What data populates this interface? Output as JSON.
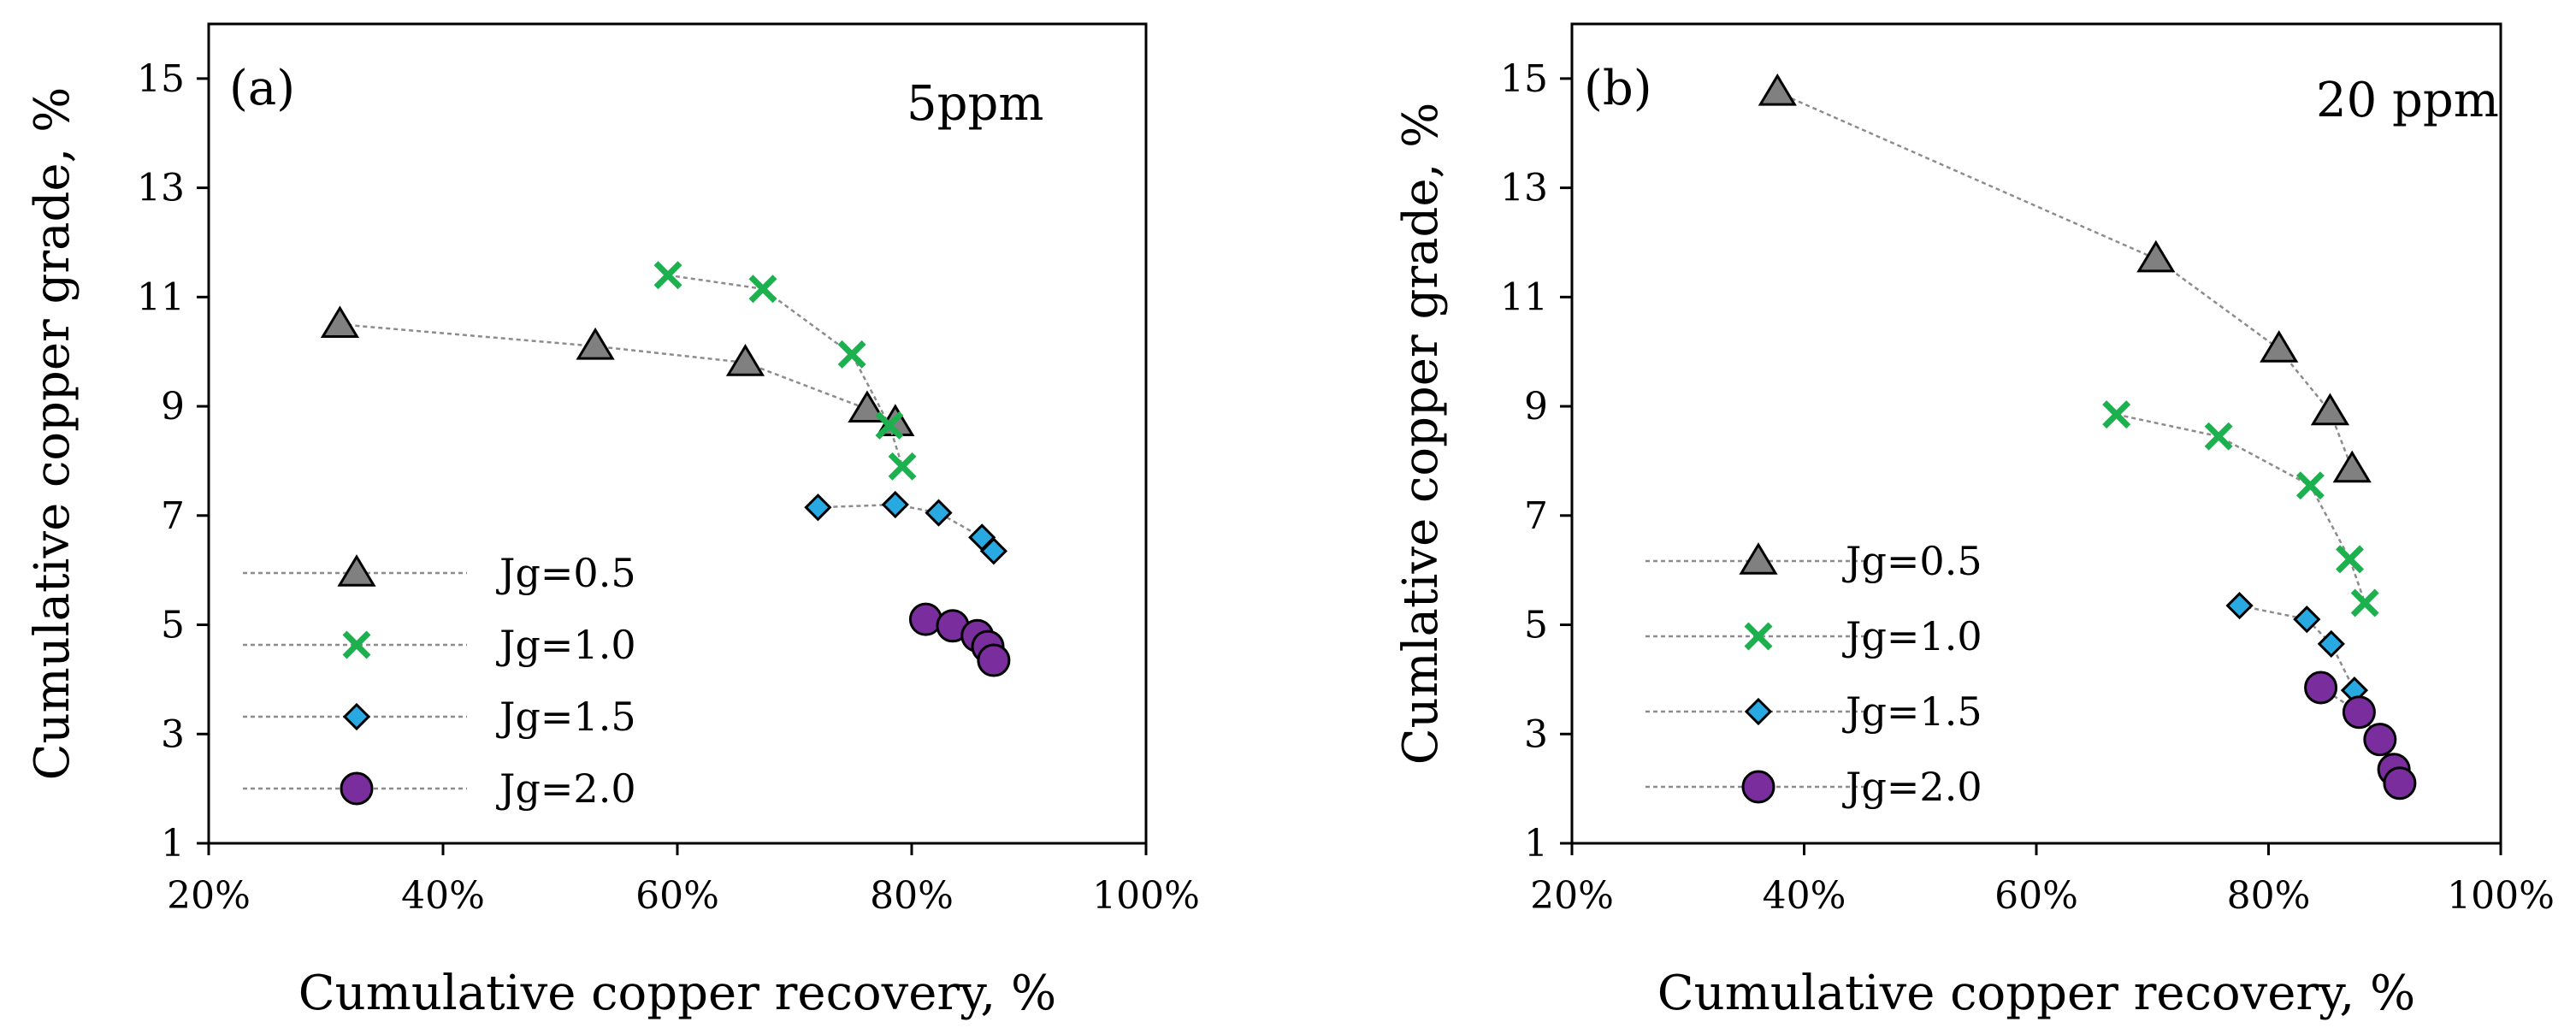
{
  "chart_data": [
    {
      "type": "scatter",
      "panel_label": "(a)",
      "annotation": "5ppm",
      "xlabel": "Cumulative copper recovery, %",
      "ylabel": "Cumulative copper grade, %",
      "xlim": [
        20,
        100
      ],
      "ylim": [
        1,
        16
      ],
      "x_ticks": [
        20,
        40,
        60,
        80,
        100
      ],
      "x_tick_labels": [
        "20%",
        "40%",
        "60%",
        "80%",
        "100%"
      ],
      "y_ticks": [
        1,
        3,
        5,
        7,
        9,
        11,
        13,
        15
      ],
      "y_tick_labels": [
        "1",
        "3",
        "5",
        "7",
        "9",
        "11",
        "13",
        "15"
      ],
      "legend_position": "bottom-left",
      "series": [
        {
          "name": "Jg=0.5",
          "marker": "triangle",
          "color": "#808080",
          "points": [
            [
              31.2,
              10.5
            ],
            [
              53.0,
              10.1
            ],
            [
              65.8,
              9.8
            ],
            [
              76.2,
              8.95
            ],
            [
              78.6,
              8.7
            ]
          ]
        },
        {
          "name": "Jg=1.0",
          "marker": "x",
          "color": "#1db04f",
          "points": [
            [
              59.2,
              11.4
            ],
            [
              67.3,
              11.15
            ],
            [
              74.9,
              9.95
            ],
            [
              78.1,
              8.65
            ],
            [
              79.2,
              7.9
            ]
          ]
        },
        {
          "name": "Jg=1.5",
          "marker": "diamond",
          "color": "#29a9e1",
          "points": [
            [
              72.0,
              7.15
            ],
            [
              78.6,
              7.2
            ],
            [
              82.3,
              7.05
            ],
            [
              86.0,
              6.6
            ],
            [
              87.0,
              6.35
            ]
          ]
        },
        {
          "name": "Jg=2.0",
          "marker": "circle",
          "color": "#7a2e9e",
          "points": [
            [
              81.2,
              5.1
            ],
            [
              83.5,
              4.98
            ],
            [
              85.6,
              4.8
            ],
            [
              86.5,
              4.6
            ],
            [
              87.0,
              4.35
            ]
          ]
        }
      ]
    },
    {
      "type": "scatter",
      "panel_label": "(b)",
      "annotation": "20 ppm",
      "xlabel": "Cumulative copper recovery, %",
      "ylabel": "Cumlative copper grade, %",
      "xlim": [
        20,
        100
      ],
      "ylim": [
        1,
        16
      ],
      "x_ticks": [
        20,
        40,
        60,
        80,
        100
      ],
      "x_tick_labels": [
        "20%",
        "40%",
        "60%",
        "80%",
        "100%"
      ],
      "y_ticks": [
        1,
        3,
        5,
        7,
        9,
        11,
        13,
        15
      ],
      "y_tick_labels": [
        "1",
        "3",
        "5",
        "7",
        "9",
        "11",
        "13",
        "15"
      ],
      "legend_position": "bottom-left",
      "series": [
        {
          "name": "Jg=0.5",
          "marker": "triangle",
          "color": "#808080",
          "points": [
            [
              37.7,
              14.75
            ],
            [
              70.3,
              11.7
            ],
            [
              80.9,
              10.05
            ],
            [
              85.3,
              8.9
            ],
            [
              87.2,
              7.85
            ]
          ]
        },
        {
          "name": "Jg=1.0",
          "marker": "x",
          "color": "#1db04f",
          "points": [
            [
              66.9,
              8.85
            ],
            [
              75.7,
              8.45
            ],
            [
              83.6,
              7.55
            ],
            [
              87.0,
              6.2
            ],
            [
              88.3,
              5.4
            ]
          ]
        },
        {
          "name": "Jg=1.5",
          "marker": "diamond",
          "color": "#29a9e1",
          "points": [
            [
              77.5,
              5.35
            ],
            [
              83.3,
              5.1
            ],
            [
              85.4,
              4.65
            ],
            [
              87.4,
              3.8
            ]
          ]
        },
        {
          "name": "Jg=2.0",
          "marker": "circle",
          "color": "#7a2e9e",
          "points": [
            [
              84.5,
              3.85
            ],
            [
              87.8,
              3.4
            ],
            [
              89.6,
              2.9
            ],
            [
              90.8,
              2.35
            ],
            [
              91.3,
              2.1
            ]
          ]
        }
      ]
    }
  ]
}
